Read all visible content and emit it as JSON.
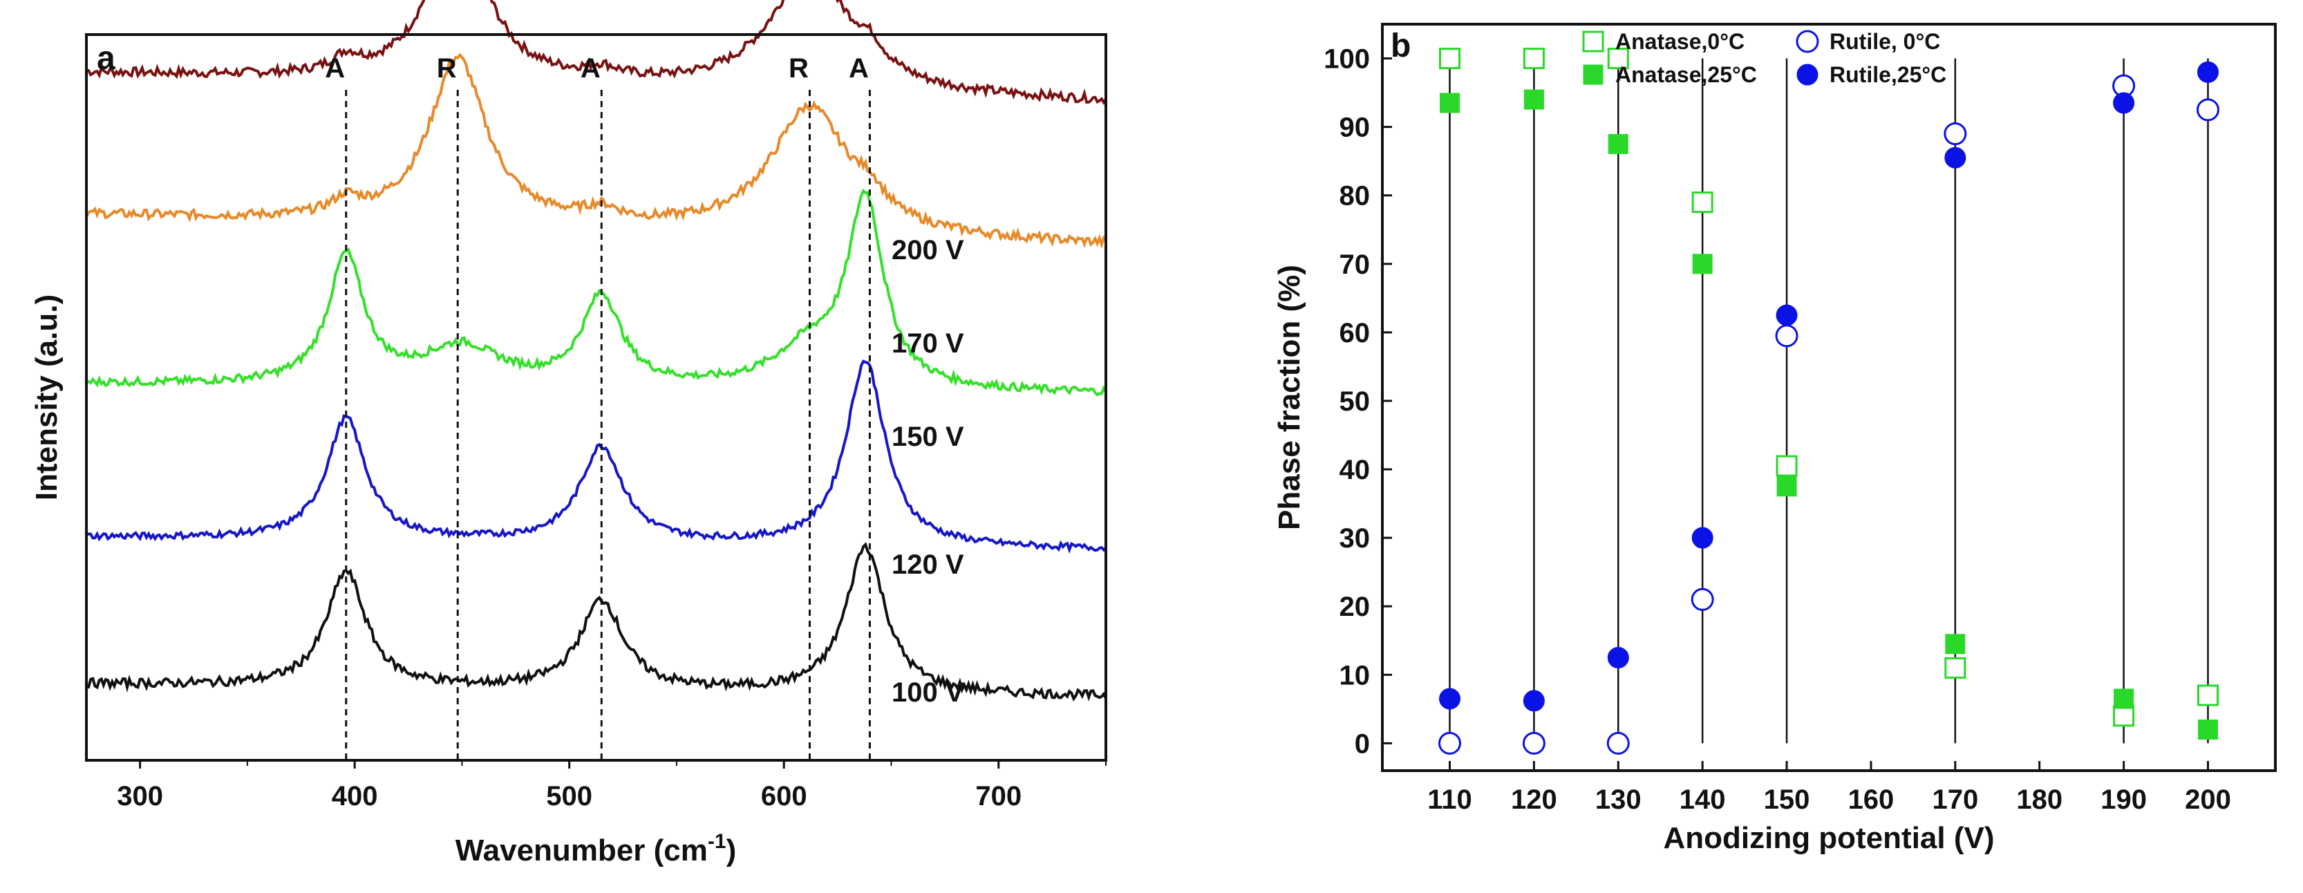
{
  "figure": {
    "panel_a_letter": "a",
    "panel_b_letter": "b"
  },
  "colors": {
    "axis": "#111111",
    "green": "#2ad829",
    "blue": "#0a12e6",
    "trace_200": "#7a1212",
    "trace_170": "#e68a2a",
    "trace_150": "#35e02b",
    "trace_120": "#1717c8",
    "trace_100": "#111111"
  },
  "chart_data": [
    {
      "type": "line",
      "panel": "a",
      "title": "",
      "xlabel_main": "Wavenumber (cm",
      "xlabel_sup": "-1",
      "xlabel_end": ")",
      "ylabel": "Intensity (a.u.)",
      "xlim": [
        275,
        750
      ],
      "x_ticks": [
        300,
        400,
        500,
        600,
        700
      ],
      "x_tick_labels": [
        "300",
        "400",
        "500",
        "600",
        "700"
      ],
      "peak_markers": [
        {
          "label": "A",
          "x": 396
        },
        {
          "label": "R",
          "x": 448
        },
        {
          "label": "A",
          "x": 515
        },
        {
          "label": "R",
          "x": 612
        },
        {
          "label": "A",
          "x": 640
        }
      ],
      "series": [
        {
          "name": "200 V",
          "label": "200 V",
          "color_key": "trace_200",
          "offset": 4.6,
          "noise": 0.035,
          "baseline_start": 0.18,
          "baseline_end": -0.05,
          "peaks": [
            {
              "center": 448,
              "amp": 1.25,
              "width": 16
            },
            {
              "center": 612,
              "amp": 0.95,
              "width": 22
            },
            {
              "center": 396,
              "amp": 0.12,
              "width": 8
            },
            {
              "center": 515,
              "amp": 0.08,
              "width": 10
            },
            {
              "center": 640,
              "amp": 0.15,
              "width": 8
            }
          ]
        },
        {
          "name": "170 V",
          "label": "170 V",
          "color_key": "trace_170",
          "offset": 3.55,
          "noise": 0.035,
          "baseline_start": 0.12,
          "baseline_end": -0.12,
          "peaks": [
            {
              "center": 448,
              "amp": 1.3,
              "width": 16
            },
            {
              "center": 612,
              "amp": 1.0,
              "width": 22
            },
            {
              "center": 396,
              "amp": 0.12,
              "width": 8
            },
            {
              "center": 515,
              "amp": 0.1,
              "width": 10
            },
            {
              "center": 640,
              "amp": 0.15,
              "width": 8
            }
          ]
        },
        {
          "name": "150 V",
          "label": "150 V",
          "color_key": "trace_150",
          "offset": 2.35,
          "noise": 0.03,
          "baseline_start": 0.0,
          "baseline_end": -0.08,
          "peaks": [
            {
              "center": 396,
              "amp": 1.0,
              "width": 10
            },
            {
              "center": 450,
              "amp": 0.3,
              "width": 22
            },
            {
              "center": 515,
              "amp": 0.7,
              "width": 11
            },
            {
              "center": 612,
              "amp": 0.3,
              "width": 20
            },
            {
              "center": 638,
              "amp": 1.45,
              "width": 10
            }
          ]
        },
        {
          "name": "120 V",
          "label": "120 V",
          "color_key": "trace_120",
          "offset": 1.15,
          "noise": 0.025,
          "baseline_start": 0.0,
          "baseline_end": -0.1,
          "peaks": [
            {
              "center": 396,
              "amp": 0.95,
              "width": 11
            },
            {
              "center": 515,
              "amp": 0.75,
              "width": 12
            },
            {
              "center": 638,
              "amp": 1.45,
              "width": 11
            }
          ]
        },
        {
          "name": "100 V",
          "label": "100 V",
          "color_key": "trace_100",
          "offset": 0.0,
          "noise": 0.035,
          "baseline_start": 0.0,
          "baseline_end": -0.1,
          "peaks": [
            {
              "center": 396,
              "amp": 0.9,
              "width": 11
            },
            {
              "center": 515,
              "amp": 0.7,
              "width": 12
            },
            {
              "center": 638,
              "amp": 1.15,
              "width": 11
            }
          ]
        }
      ]
    },
    {
      "type": "scatter",
      "panel": "b",
      "title": "",
      "xlabel": "Anodizing potential (V)",
      "ylabel": "Phase fraction (%)",
      "xlim": [
        102,
        208
      ],
      "ylim": [
        -4,
        105
      ],
      "x_ticks": [
        110,
        120,
        130,
        140,
        150,
        160,
        170,
        180,
        190,
        200
      ],
      "x_tick_labels": [
        "110",
        "120",
        "130",
        "140",
        "150",
        "160",
        "170",
        "180",
        "190",
        "200"
      ],
      "y_ticks": [
        0,
        10,
        20,
        30,
        40,
        50,
        60,
        70,
        80,
        90,
        100
      ],
      "y_tick_labels": [
        "0",
        "10",
        "20",
        "30",
        "40",
        "50",
        "60",
        "70",
        "80",
        "90",
        "100"
      ],
      "vertical_lines_at": [
        110,
        120,
        130,
        140,
        150,
        170,
        190,
        200
      ],
      "series": [
        {
          "name": "Anatase,0°C",
          "marker": "square",
          "filled": false,
          "color_key": "green",
          "x": [
            110,
            120,
            130,
            140,
            150,
            170,
            190,
            200
          ],
          "y": [
            100,
            100,
            100,
            79,
            40.5,
            11,
            4,
            7
          ]
        },
        {
          "name": "Anatase,25°C",
          "marker": "square",
          "filled": true,
          "color_key": "green",
          "x": [
            110,
            120,
            130,
            140,
            150,
            170,
            190,
            200
          ],
          "y": [
            93.5,
            94,
            87.5,
            70,
            37.5,
            14.5,
            6.5,
            2
          ]
        },
        {
          "name": "Rutile, 0°C",
          "marker": "circle",
          "filled": false,
          "color_key": "blue",
          "x": [
            110,
            120,
            130,
            140,
            150,
            170,
            190,
            200
          ],
          "y": [
            0,
            0,
            0,
            21,
            59.5,
            89,
            96,
            92.5
          ]
        },
        {
          "name": "Rutile,25°C",
          "marker": "circle",
          "filled": true,
          "color_key": "blue",
          "x": [
            110,
            120,
            130,
            140,
            150,
            170,
            190,
            200
          ],
          "y": [
            6.5,
            6.2,
            12.5,
            30,
            62.5,
            85.5,
            93.5,
            98
          ]
        }
      ]
    }
  ]
}
